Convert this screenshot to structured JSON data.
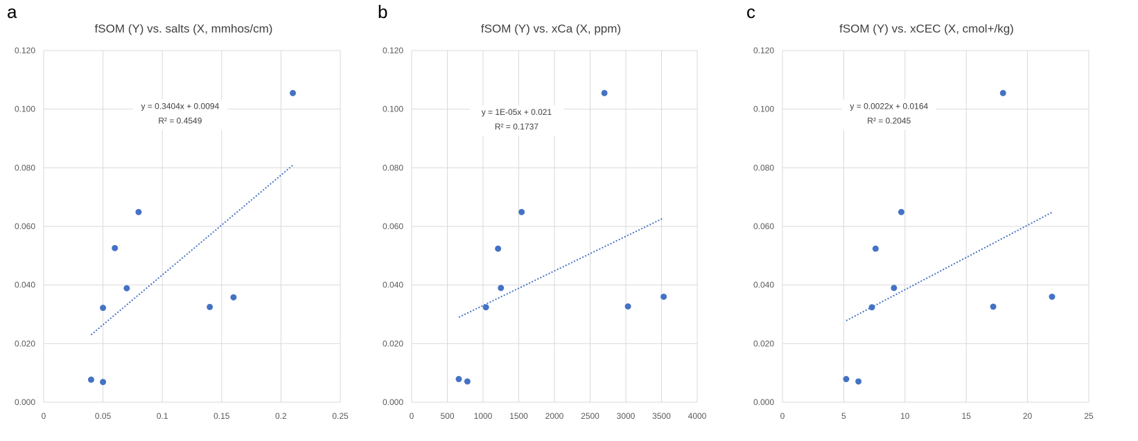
{
  "colors": {
    "marker": "#4472c4",
    "trendline": "#4472c4",
    "grid": "#d9d9d9",
    "text": "#595959"
  },
  "chart_data": [
    {
      "type": "scatter",
      "panel_label": "a",
      "title": "fSOM (Y) vs. salts (X, mmhos/cm)",
      "xlabel": "",
      "ylabel": "",
      "xlim": [
        0,
        0.25
      ],
      "ylim": [
        0,
        0.12
      ],
      "x_ticks": [
        0,
        0.05,
        0.1,
        0.15,
        0.2,
        0.25
      ],
      "x_tick_labels": [
        "0",
        "0.05",
        "0.1",
        "0.15",
        "0.2",
        "0.25"
      ],
      "y_ticks": [
        0,
        0.02,
        0.04,
        0.06,
        0.08,
        0.1,
        0.12
      ],
      "y_tick_labels": [
        "0.000",
        "0.020",
        "0.040",
        "0.060",
        "0.080",
        "0.100",
        "0.120"
      ],
      "grid": true,
      "points": [
        {
          "x": 0.04,
          "y": 0.0077
        },
        {
          "x": 0.05,
          "y": 0.0069
        },
        {
          "x": 0.05,
          "y": 0.0322
        },
        {
          "x": 0.06,
          "y": 0.0526
        },
        {
          "x": 0.07,
          "y": 0.0389
        },
        {
          "x": 0.08,
          "y": 0.0649
        },
        {
          "x": 0.14,
          "y": 0.0325
        },
        {
          "x": 0.16,
          "y": 0.0358
        },
        {
          "x": 0.21,
          "y": 0.1055
        }
      ],
      "trendline": {
        "type": "linear",
        "slope": 0.3404,
        "intercept": 0.0094,
        "x_range": [
          0.04,
          0.21
        ]
      },
      "equation": "y = 0.3404x + 0.0094",
      "r_squared": "R² = 0.4549",
      "equation_anchor": {
        "x": 0.115,
        "y": 0.1
      }
    },
    {
      "type": "scatter",
      "panel_label": "b",
      "title": "fSOM (Y) vs. xCa (X, ppm)",
      "xlabel": "",
      "ylabel": "",
      "xlim": [
        0,
        4000
      ],
      "ylim": [
        0,
        0.12
      ],
      "x_ticks": [
        0,
        500,
        1000,
        1500,
        2000,
        2500,
        3000,
        3500,
        4000
      ],
      "x_tick_labels": [
        "0",
        "500",
        "1000",
        "1500",
        "2000",
        "2500",
        "3000",
        "3500",
        "4000"
      ],
      "y_ticks": [
        0,
        0.02,
        0.04,
        0.06,
        0.08,
        0.1,
        0.12
      ],
      "y_tick_labels": [
        "0.000",
        "0.020",
        "0.040",
        "0.060",
        "0.080",
        "0.100",
        "0.120"
      ],
      "grid": true,
      "points": [
        {
          "x": 660,
          "y": 0.0079
        },
        {
          "x": 780,
          "y": 0.0071
        },
        {
          "x": 1040,
          "y": 0.0324
        },
        {
          "x": 1210,
          "y": 0.0524
        },
        {
          "x": 1250,
          "y": 0.039
        },
        {
          "x": 1540,
          "y": 0.0649
        },
        {
          "x": 2700,
          "y": 0.1055
        },
        {
          "x": 3030,
          "y": 0.0327
        },
        {
          "x": 3530,
          "y": 0.036
        }
      ],
      "trendline": {
        "type": "linear",
        "slope": 1.18e-05,
        "intercept": 0.0212,
        "x_range": [
          660,
          3530
        ]
      },
      "equation": "y = 1E-05x + 0.021",
      "r_squared": "R² = 0.1737",
      "equation_anchor": {
        "x": 1470,
        "y": 0.098
      }
    },
    {
      "type": "scatter",
      "panel_label": "c",
      "title": "fSOM (Y) vs. xCEC (X, cmol+/kg)",
      "xlabel": "",
      "ylabel": "",
      "xlim": [
        0,
        25
      ],
      "ylim": [
        0,
        0.12
      ],
      "x_ticks": [
        0,
        5,
        10,
        15,
        20,
        25
      ],
      "x_tick_labels": [
        "0",
        "5",
        "10",
        "15",
        "20",
        "25"
      ],
      "y_ticks": [
        0,
        0.02,
        0.04,
        0.06,
        0.08,
        0.1,
        0.12
      ],
      "y_tick_labels": [
        "0.000",
        "0.020",
        "0.040",
        "0.060",
        "0.080",
        "0.100",
        "0.120"
      ],
      "grid": true,
      "points": [
        {
          "x": 5.2,
          "y": 0.0079
        },
        {
          "x": 6.2,
          "y": 0.0071
        },
        {
          "x": 7.3,
          "y": 0.0324
        },
        {
          "x": 7.6,
          "y": 0.0524
        },
        {
          "x": 9.1,
          "y": 0.039
        },
        {
          "x": 9.7,
          "y": 0.0649
        },
        {
          "x": 17.2,
          "y": 0.0326
        },
        {
          "x": 18.0,
          "y": 0.1055
        },
        {
          "x": 22.0,
          "y": 0.036
        }
      ],
      "trendline": {
        "type": "linear",
        "slope": 0.0022,
        "intercept": 0.0164,
        "x_range": [
          5.2,
          22.0
        ]
      },
      "equation": "y = 0.0022x + 0.0164",
      "r_squared": "R² = 0.2045",
      "equation_anchor": {
        "x": 8.7,
        "y": 0.1
      }
    }
  ]
}
